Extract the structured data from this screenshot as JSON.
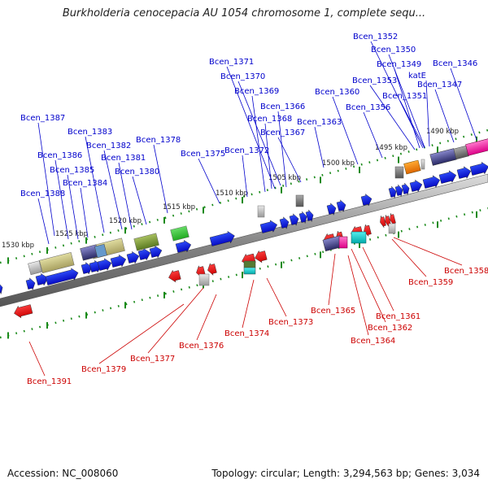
{
  "title": "Burkholderia cenocepacia AU 1054 chromosome 1, complete sequ...",
  "footer": {
    "accession": "Accession: NC_008060",
    "summary": "Topology: circular; Length: 3,294,563 bp; Genes: 3,034"
  },
  "colors": {
    "forward_label": "#0000cc",
    "reverse_label": "#cc0000",
    "backbone": "#777777",
    "tick": "#2a8a2a"
  },
  "kbp_ticks": [
    "1490 kbp",
    "1495 kbp",
    "1500 kbp",
    "1505 kbp",
    "1510 kbp",
    "1515 kbp",
    "1520 kbp",
    "1525 kbp",
    "1530 kbp"
  ],
  "forward_labels": [
    "Bcen_1352",
    "Bcen_1350",
    "Bcen_1346",
    "Bcen_1349",
    "katE",
    "Bcen_1347",
    "Bcen_1353",
    "Bcen_1351",
    "Bcen_1371",
    "Bcen_1370",
    "Bcen_1369",
    "Bcen_1360",
    "Bcen_1366",
    "Bcen_1356",
    "Bcen_1368",
    "Bcen_1363",
    "Bcen_1367",
    "Bcen_1387",
    "Bcen_1383",
    "Bcen_1382",
    "Bcen_1378",
    "Bcen_1386",
    "Bcen_1381",
    "Bcen_1375",
    "Bcen_1372",
    "Bcen_1385",
    "Bcen_1380",
    "Bcen_1384",
    "Bcen_1388"
  ],
  "reverse_labels": [
    "Bcen_1358",
    "Bcen_1359",
    "Bcen_1365",
    "Bcen_1361",
    "Bcen_1373",
    "Bcen_1362",
    "Bcen_1374",
    "Bcen_1364",
    "Bcen_1376",
    "Bcen_1377",
    "Bcen_1379",
    "Bcen_1391"
  ]
}
